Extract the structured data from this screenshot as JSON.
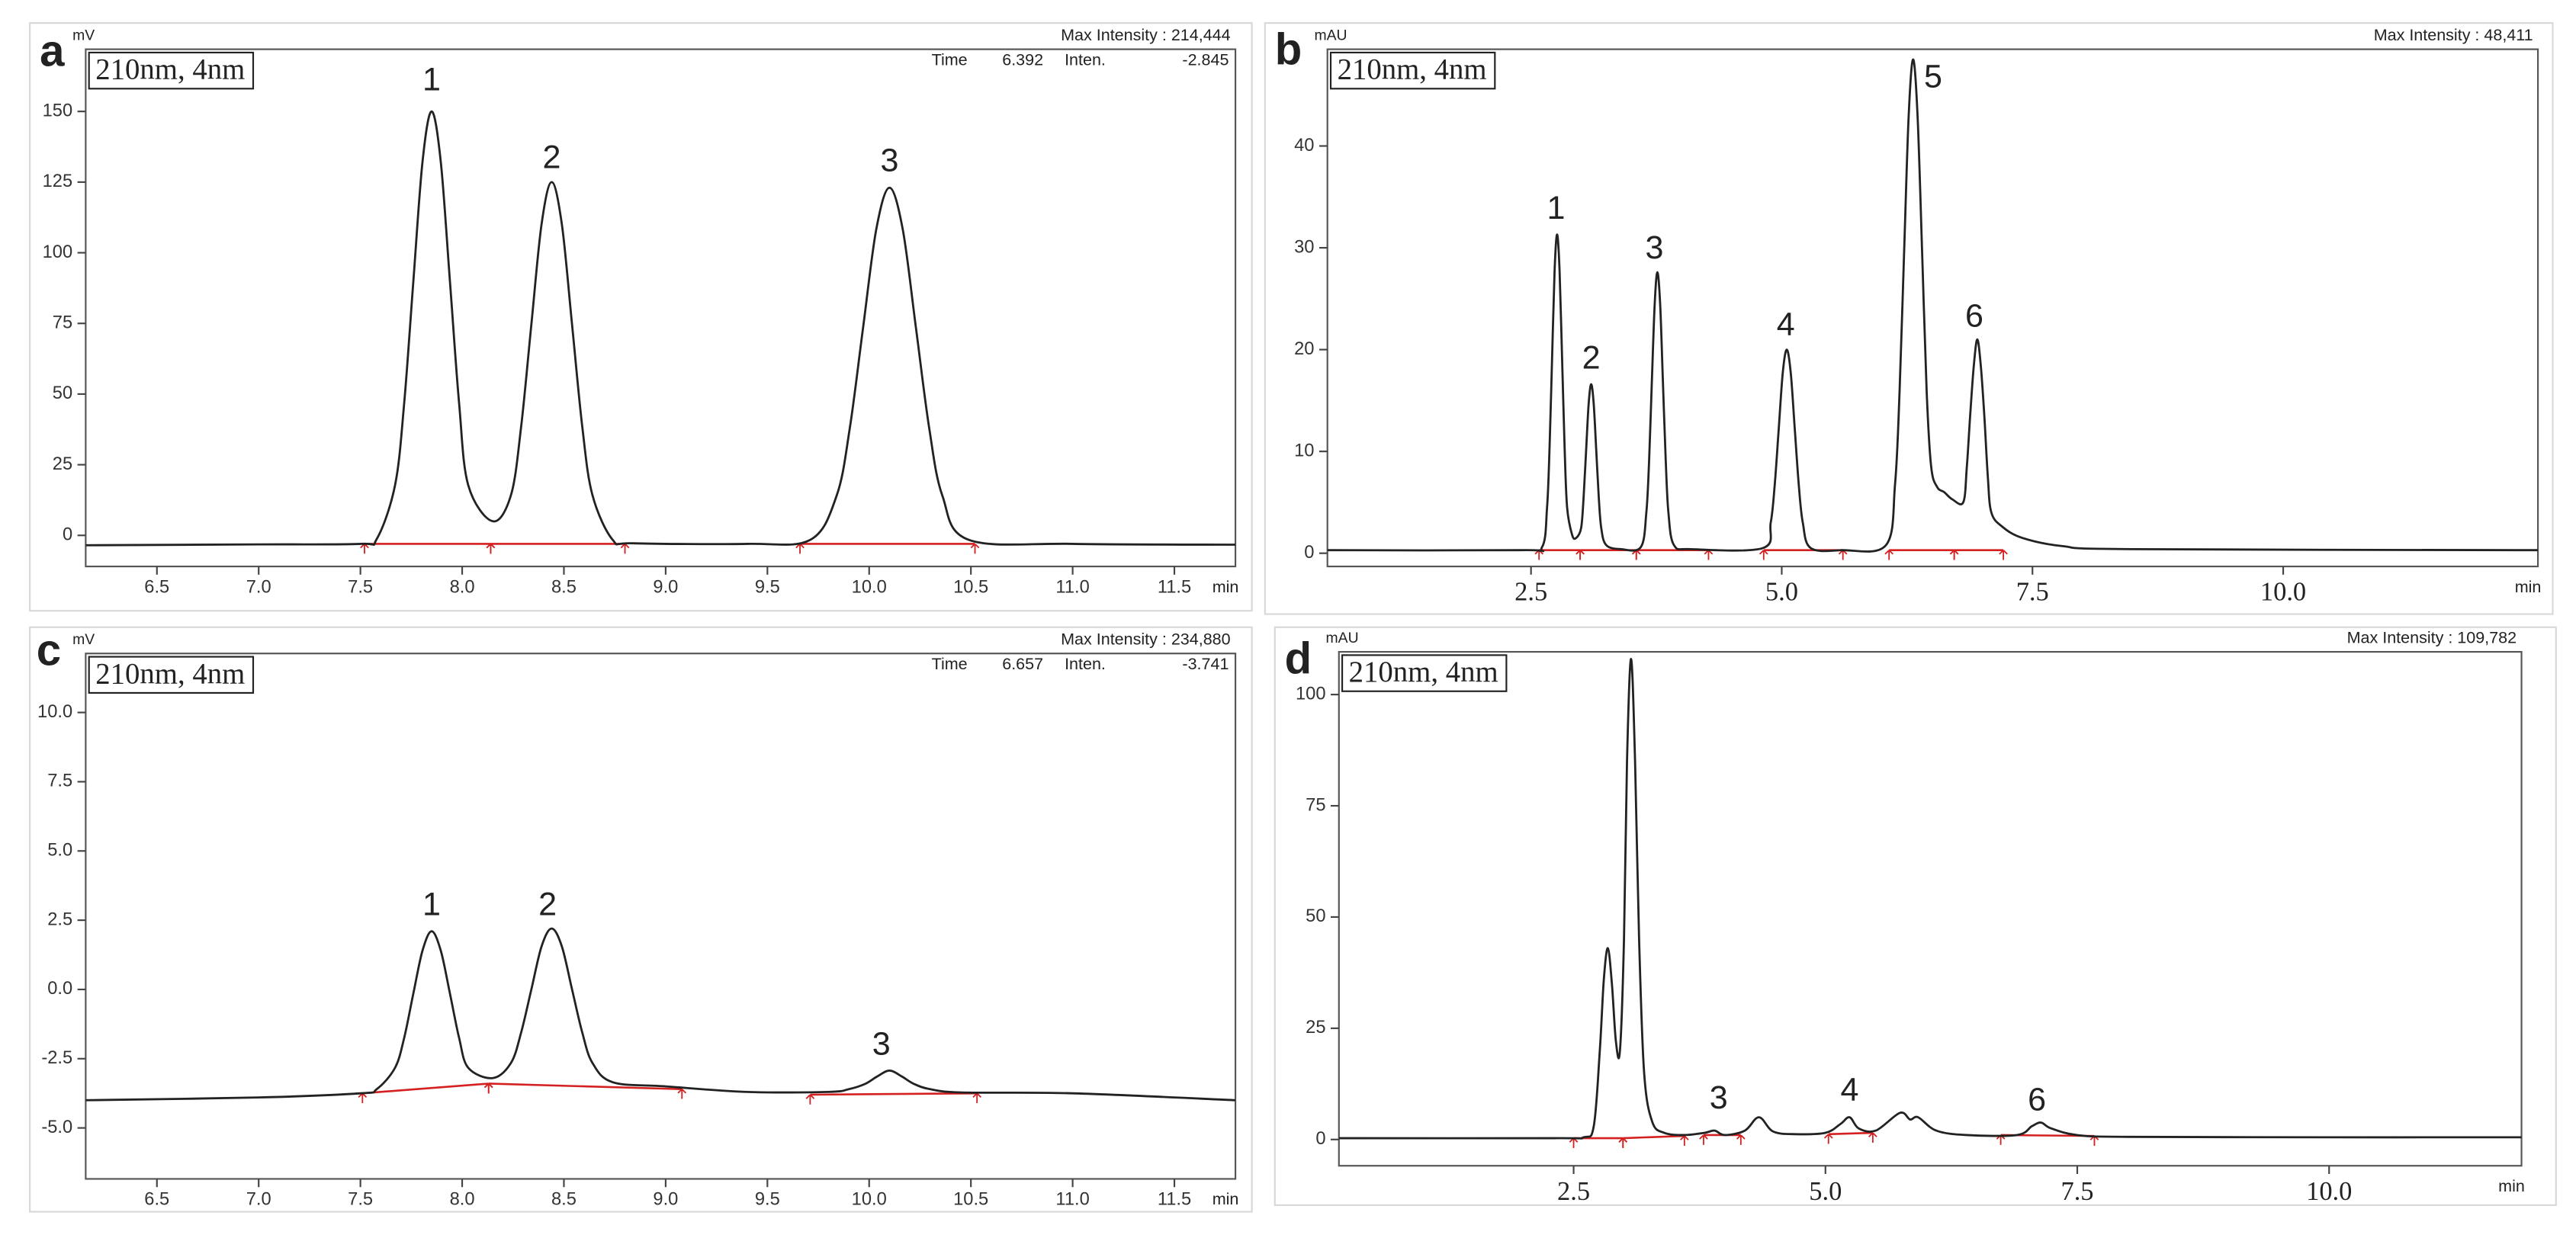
{
  "chart_data": [
    {
      "type": "line",
      "panel": "a",
      "ylabel": "mV",
      "xlabel": "min",
      "wavelength": "210nm, 4nm",
      "max_intensity": "Max Intensity : 214,444",
      "cursor": {
        "time_label": "Time",
        "time": 6.392,
        "inten_label": "Inten.",
        "inten": -2.845
      },
      "xlim": [
        6.15,
        11.8
      ],
      "ylim": [
        -11,
        172
      ],
      "xticks": [
        6.5,
        {
          "value": 7,
          "label": "7.0"
        },
        7.5,
        {
          "value": 8,
          "label": "8.0"
        },
        8.5,
        {
          "value": 9,
          "label": "9.0"
        },
        9.5,
        {
          "value": 10,
          "label": "10.0"
        },
        10.5,
        {
          "value": 11,
          "label": "11.0"
        },
        11.5
      ],
      "yticks": [
        0,
        25,
        50,
        75,
        100,
        125,
        150
      ],
      "color": "#222222",
      "baseline_color": "#d42020",
      "x": [
        6.15,
        7.0,
        7.5,
        7.58,
        7.67,
        7.715,
        7.76,
        7.805,
        7.85,
        7.895,
        7.94,
        7.985,
        8.03,
        8.15,
        8.24,
        8.29,
        8.34,
        8.39,
        8.44,
        8.49,
        8.54,
        8.59,
        8.64,
        8.74,
        8.84,
        9.4,
        9.71,
        9.84,
        9.905,
        9.97,
        10.035,
        10.1,
        10.165,
        10.23,
        10.295,
        10.36,
        10.49,
        11.0,
        11.8
      ],
      "values": [
        -3.5,
        -3.2,
        -3,
        -1.3,
        17.7,
        46.7,
        89.8,
        132.1,
        150,
        132.1,
        89.8,
        46.7,
        17.7,
        5,
        14.3,
        38.6,
        74.6,
        110,
        125,
        110,
        74.6,
        38.6,
        14.3,
        -1.6,
        -2.8,
        -3,
        -1.6,
        14,
        38,
        73.4,
        108.3,
        123,
        108.3,
        73.4,
        38,
        14,
        -1.6,
        -3,
        -3.3
      ],
      "baselines": [
        [
          7.52,
          -3,
          8.14,
          -3
        ],
        [
          8.14,
          -3,
          8.8,
          -3
        ],
        [
          9.66,
          -3,
          10.52,
          -3
        ]
      ],
      "peak_labels": [
        {
          "text": "1",
          "x": 7.85,
          "y": 160.5
        },
        {
          "text": "2",
          "x": 8.44,
          "y": 133
        },
        {
          "text": "3",
          "x": 10.1,
          "y": 132
        }
      ]
    },
    {
      "type": "line",
      "panel": "b",
      "ylabel": "mAU",
      "xlabel": "min",
      "wavelength": "210nm, 4nm",
      "max_intensity": "Max Intensity : 48,411",
      "xlim": [
        0.47,
        12.54
      ],
      "ylim": [
        -1.3,
        49.5
      ],
      "xticks": [
        2.5,
        {
          "value": 5,
          "label": "5.0"
        },
        7.5,
        {
          "value": 10,
          "label": "10.0"
        }
      ],
      "yticks": [
        0,
        10,
        20,
        30,
        40
      ],
      "color": "#222222",
      "baseline_color": "#d42020",
      "x": [
        0.47,
        2.4,
        2.61,
        2.66,
        2.685,
        2.71,
        2.735,
        2.76,
        2.785,
        2.81,
        2.835,
        2.86,
        2.91,
        2.95,
        3.0,
        3.025,
        3.05,
        3.075,
        3.1,
        3.125,
        3.15,
        3.175,
        3.2,
        3.25,
        3.4,
        3.595,
        3.65,
        3.678,
        3.705,
        3.733,
        3.76,
        3.788,
        3.815,
        3.843,
        3.87,
        3.925,
        4.1,
        4.81,
        4.89,
        4.93,
        4.97,
        5.01,
        5.05,
        5.09,
        5.13,
        5.17,
        5.21,
        5.29,
        5.6,
        6.04,
        6.13,
        6.175,
        6.22,
        6.265,
        6.31,
        6.355,
        6.4,
        6.445,
        6.49,
        6.55,
        6.62,
        6.7,
        6.81,
        6.845,
        6.88,
        6.915,
        6.95,
        6.985,
        7.02,
        7.055,
        7.09,
        7.2,
        7.4,
        7.8,
        8.5,
        12.54
      ],
      "values": [
        0.3,
        0.3,
        0.6,
        4.5,
        10.4,
        19.1,
        27.7,
        31.3,
        27.7,
        19.1,
        10.4,
        4.5,
        1.8,
        1.5,
        2.5,
        5.6,
        10.2,
        14.7,
        16.6,
        14.7,
        10.2,
        5.6,
        2.5,
        0.8,
        0.4,
        0.6,
        4.0,
        9.2,
        16.9,
        24.4,
        27.6,
        24.4,
        16.9,
        9.2,
        4.0,
        0.8,
        0.4,
        0.5,
        3.0,
        6.7,
        12.2,
        17.7,
        20,
        17.7,
        12.2,
        6.7,
        3.0,
        0.5,
        0.3,
        0.8,
        6.8,
        15.9,
        29.5,
        42.8,
        48.5,
        42.8,
        29.5,
        15.9,
        8.5,
        6.5,
        6,
        5.3,
        5,
        8.4,
        13.7,
        18.4,
        21,
        18.4,
        13.5,
        7.5,
        4.0,
        2.6,
        1.5,
        0.7,
        0.4,
        0.3
      ],
      "baselines": [
        [
          2.58,
          0.3,
          2.99,
          0.3
        ],
        [
          2.99,
          0.3,
          3.55,
          0.3
        ],
        [
          3.55,
          0.3,
          4.27,
          0.3
        ],
        [
          4.82,
          0.3,
          5.61,
          0.3
        ],
        [
          6.07,
          0.3,
          6.72,
          0.3
        ],
        [
          6.72,
          0.3,
          7.21,
          0.3
        ]
      ],
      "peak_labels": [
        {
          "text": "1",
          "x": 2.75,
          "y": 33.7
        },
        {
          "text": "2",
          "x": 3.1,
          "y": 19.0
        },
        {
          "text": "3",
          "x": 3.73,
          "y": 29.8
        },
        {
          "text": "4",
          "x": 5.04,
          "y": 22.3
        },
        {
          "text": "5",
          "x": 6.51,
          "y": 46.6
        },
        {
          "text": "6",
          "x": 6.92,
          "y": 23.1
        }
      ]
    },
    {
      "type": "line",
      "panel": "c",
      "ylabel": "mV",
      "xlabel": "min",
      "wavelength": "210nm, 4nm",
      "max_intensity": "Max Intensity : 234,880",
      "cursor": {
        "time_label": "Time",
        "time": 6.657,
        "inten_label": "Inten.",
        "inten": -3.741
      },
      "xlim": [
        6.15,
        11.8
      ],
      "ylim": [
        -6.84,
        12.13
      ],
      "xticks": [
        6.5,
        {
          "value": 7,
          "label": "7.0"
        },
        7.5,
        {
          "value": 8,
          "label": "8.0"
        },
        8.5,
        {
          "value": 9,
          "label": "9.0"
        },
        9.5,
        {
          "value": 10,
          "label": "10.0"
        },
        10.5,
        {
          "value": 11,
          "label": "11.0"
        },
        11.5
      ],
      "yticks": [
        {
          "value": -5,
          "label": "-5.0"
        },
        -2.5,
        {
          "value": 0,
          "label": "0.0"
        },
        2.5,
        {
          "value": 5,
          "label": "5.0"
        },
        7.5,
        {
          "value": 10,
          "label": "10.0"
        }
      ],
      "color": "#222222",
      "baseline_color": "#d42020",
      "x": [
        6.15,
        7.0,
        7.5,
        7.58,
        7.67,
        7.715,
        7.76,
        7.805,
        7.85,
        7.895,
        7.94,
        7.985,
        8.03,
        8.15,
        8.24,
        8.29,
        8.34,
        8.39,
        8.44,
        8.49,
        8.54,
        8.59,
        8.64,
        8.74,
        9.0,
        9.4,
        9.8,
        9.9,
        9.98,
        10.04,
        10.1,
        10.16,
        10.22,
        10.3,
        10.46,
        11.0,
        11.8
      ],
      "values": [
        -4.0,
        -3.9,
        -3.75,
        -3.6,
        -2.83,
        -1.75,
        -0.15,
        1.4,
        2.1,
        1.4,
        -0.15,
        -1.75,
        -2.83,
        -3.2,
        -2.65,
        -1.55,
        0.0,
        1.55,
        2.2,
        1.55,
        0.0,
        -1.55,
        -2.65,
        -3.35,
        -3.5,
        -3.7,
        -3.7,
        -3.6,
        -3.41,
        -3.14,
        -2.93,
        -3.14,
        -3.41,
        -3.6,
        -3.72,
        -3.75,
        -4.0
      ],
      "baselines": [
        [
          7.51,
          -3.75,
          8.13,
          -3.4
        ],
        [
          8.13,
          -3.4,
          9.08,
          -3.6
        ],
        [
          9.71,
          -3.8,
          10.53,
          -3.75
        ]
      ],
      "peak_labels": [
        {
          "text": "1",
          "x": 7.85,
          "y": 3.0
        },
        {
          "text": "2",
          "x": 8.42,
          "y": 3.0
        },
        {
          "text": "3",
          "x": 10.06,
          "y": -2.04
        }
      ]
    },
    {
      "type": "line",
      "panel": "d",
      "ylabel": "mAU",
      "xlabel": "min",
      "wavelength": "210nm, 4nm",
      "max_intensity": "Max Intensity : 109,782",
      "xlim": [
        0.17,
        11.91
      ],
      "ylim": [
        -5.9,
        109.6
      ],
      "xticks": [
        2.5,
        {
          "value": 5,
          "label": "5.0"
        },
        7.5,
        {
          "value": 10,
          "label": "10.0"
        }
      ],
      "yticks": [
        0,
        25,
        50,
        75,
        100
      ],
      "color": "#222222",
      "baseline_color": "#d42020",
      "x": [
        0.17,
        2.3,
        2.6,
        2.7,
        2.76,
        2.8,
        2.84,
        2.88,
        2.92,
        2.96,
        3.0,
        3.03,
        3.07,
        3.11,
        3.15,
        3.2,
        3.28,
        3.4,
        3.6,
        3.8,
        3.9,
        4.0,
        4.2,
        4.34,
        4.48,
        4.7,
        5.0,
        5.15,
        5.24,
        5.33,
        5.5,
        5.74,
        5.84,
        5.92,
        6.1,
        6.4,
        6.9,
        7.05,
        7.14,
        7.24,
        7.5,
        8.0,
        10.0,
        11.91
      ],
      "values": [
        0.3,
        0.3,
        0.5,
        3,
        20,
        36,
        43,
        35,
        22,
        20,
        45,
        85,
        108,
        85,
        45,
        15,
        4,
        1.5,
        1.0,
        1.5,
        2.0,
        1.0,
        2.0,
        5.0,
        1.8,
        1.2,
        1.5,
        3.5,
        5.0,
        2.5,
        2.0,
        6.0,
        4.5,
        5.0,
        2.0,
        1.0,
        1.0,
        3.0,
        3.8,
        2.5,
        1.0,
        0.6,
        0.5,
        0.5
      ],
      "baselines": [
        [
          2.5,
          0.3,
          2.99,
          0.3
        ],
        [
          2.99,
          0.3,
          3.6,
          0.8
        ],
        [
          3.79,
          1,
          4.16,
          1
        ],
        [
          5.03,
          1.2,
          5.47,
          1.5
        ],
        [
          6.74,
          1,
          7.67,
          0.8
        ]
      ],
      "peak_labels": [
        {
          "text": "3",
          "x": 3.94,
          "y": 8.9
        },
        {
          "text": "4",
          "x": 5.24,
          "y": 10.7
        },
        {
          "text": "6",
          "x": 7.1,
          "y": 8.5
        }
      ]
    }
  ]
}
